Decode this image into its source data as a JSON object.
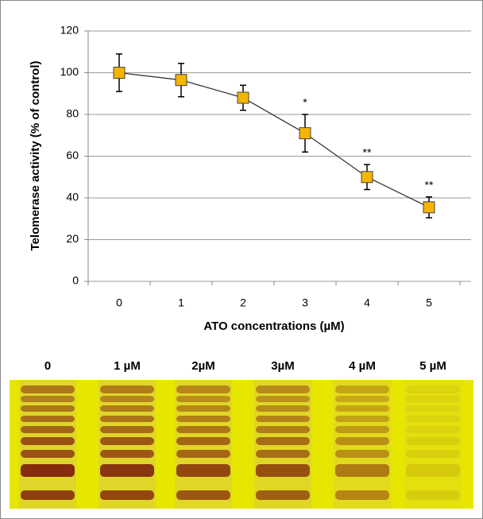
{
  "chart_data": {
    "type": "line",
    "y_label": "Telomerase activity (% of control)",
    "x_label": "ATO concentrations (µM)",
    "x": [
      0,
      1,
      2,
      3,
      4,
      5
    ],
    "xlim": [
      -0.5,
      5.5
    ],
    "xticks": [
      0,
      1,
      2,
      3,
      4,
      5
    ],
    "ylim": [
      0,
      120
    ],
    "yticks": [
      0,
      20,
      40,
      60,
      80,
      100,
      120
    ],
    "grid": true,
    "series": [
      {
        "name": "Telomerase activity",
        "color": "#f5b400",
        "values": [
          100,
          96.5,
          88,
          71,
          50,
          35.5
        ],
        "errors": [
          9,
          8,
          6,
          9,
          6,
          5
        ]
      }
    ],
    "annotations": [
      {
        "x": 3,
        "text": "*"
      },
      {
        "x": 4,
        "text": "**"
      },
      {
        "x": 5,
        "text": "**"
      }
    ]
  },
  "gel": {
    "lane_labels": [
      "0",
      "1 µM",
      "2µM",
      "3µM",
      "4 µM",
      "5 µM"
    ]
  }
}
